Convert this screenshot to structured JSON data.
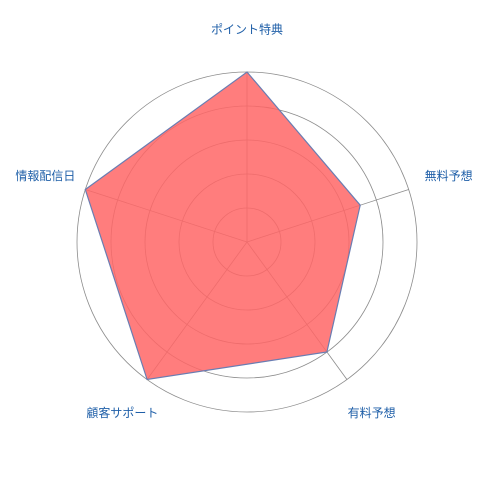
{
  "chart_data": {
    "type": "radar",
    "axes": [
      "ポイント特典",
      "無料予想",
      "有料予想",
      "顧客サポート",
      "情報配信日"
    ],
    "series": [
      {
        "values": [
          5,
          3.5,
          4,
          5,
          5
        ]
      }
    ],
    "rmax": 5,
    "rings": 5,
    "grid": true,
    "legend": "none",
    "colors": {
      "fill": "#ff6666",
      "fill_opacity": 0.85,
      "stroke": "#6a7db2",
      "grid": "#8c8c8c",
      "label": "#1f5fa8"
    }
  }
}
